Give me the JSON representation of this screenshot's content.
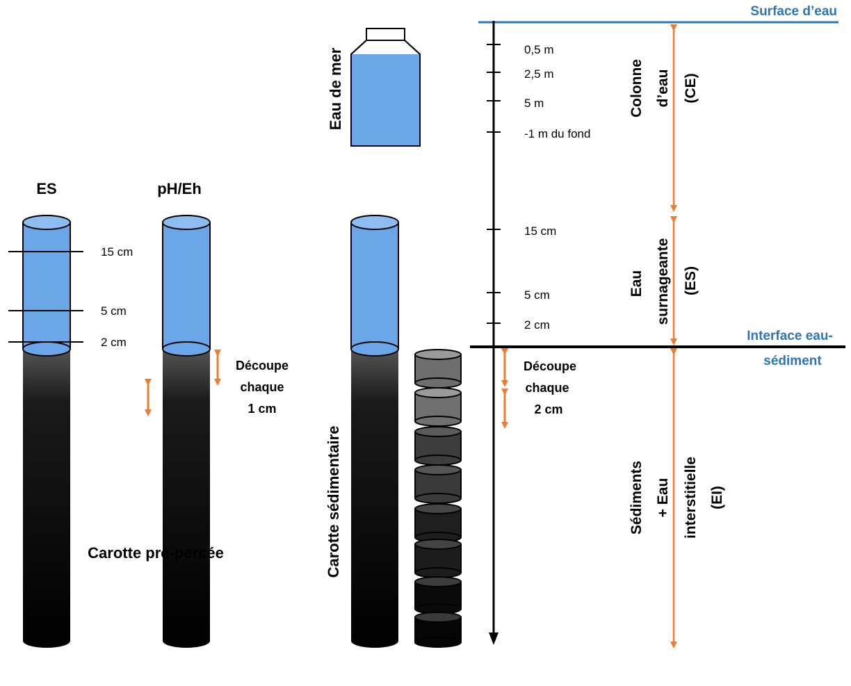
{
  "colors": {
    "water": "#6AA6E8",
    "sediment_top": "#5a5a5a",
    "sediment_bottom": "#000000",
    "arrow": "#ED7D31",
    "interface_blue": "#2E75B6",
    "axis": "#000000"
  },
  "left_cores": {
    "es_title": "ES",
    "ph_title": "pH/Eh",
    "caption": "Carotte pré-percée",
    "depth_labels": [
      "15 cm",
      "5 cm",
      "2 cm"
    ],
    "cut": [
      "Découpe",
      "chaque",
      "1 cm"
    ]
  },
  "bottle": {
    "label": "Eau de mer"
  },
  "sediment_core": {
    "label": "Carotte sédimentaire",
    "cut": [
      "Découpe",
      "chaque",
      "2 cm"
    ]
  },
  "axis": {
    "surface_label": "Surface d’eau",
    "interface_label": [
      "Interface eau-",
      "sédiment"
    ],
    "water_column_ticks": [
      "0,5 m",
      "2,5 m",
      "5 m",
      "-1 m du fond"
    ],
    "supernatant_ticks": [
      "15 cm",
      "5 cm",
      "2 cm"
    ]
  },
  "zones": {
    "ce": [
      "Colonne",
      "d’eau",
      "(CE)"
    ],
    "es": [
      "Eau",
      "surnageante",
      "(ES)"
    ],
    "ei": [
      "Sédiments",
      "+ Eau",
      "interstitielle",
      "(EI)"
    ]
  }
}
